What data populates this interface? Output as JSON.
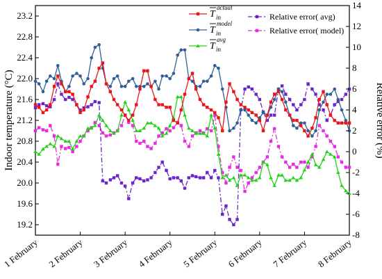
{
  "chart_data": {
    "type": "line",
    "ylabel_left": "Indoor temperature (°C)",
    "ylabel_right": "Relative error (%)",
    "ylim_left": [
      19.0,
      23.4
    ],
    "ylim_right": [
      -8,
      14
    ],
    "yticks_left": [
      "19.2",
      "19.6",
      "20.0",
      "20.4",
      "20.8",
      "21.2",
      "21.6",
      "22.0",
      "22.4",
      "22.8",
      "23.2"
    ],
    "yticks_right": [
      "-8",
      "-6",
      "-4",
      "-2",
      "0",
      "2",
      "4",
      "6",
      "8",
      "10",
      "12",
      "14"
    ],
    "xlim": [
      1,
      8
    ],
    "xticks": [
      {
        "x": 1,
        "label": "1 February"
      },
      {
        "x": 2,
        "label": "2 February"
      },
      {
        "x": 3,
        "label": "3 February"
      },
      {
        "x": 4,
        "label": "4 February"
      },
      {
        "x": 5,
        "label": "5 February"
      },
      {
        "x": 6,
        "label": "6 February"
      },
      {
        "x": 7,
        "label": "7 February"
      },
      {
        "x": 8,
        "label": "8 February"
      }
    ],
    "legend": [
      {
        "symbol": "T",
        "sub": "in",
        "sup": "actual",
        "color": "#e8161b",
        "marker": "square",
        "dash": false
      },
      {
        "symbol": "T",
        "sub": "in",
        "sup": "model",
        "color": "#2f5f96",
        "marker": "circle",
        "dash": false
      },
      {
        "symbol": "T",
        "sub": "in",
        "sup": "avg",
        "color": "#21d316",
        "marker": "triangle",
        "dash": false
      },
      {
        "label": "Relative error( avg)",
        "color": "#6a24c9",
        "marker": "square",
        "dash": true
      },
      {
        "label": "Relative error( model)",
        "color": "#e62ce0",
        "marker": "square",
        "dash": true
      }
    ],
    "series": [
      {
        "axis": "left",
        "color": "#e8161b",
        "marker": "square",
        "dash": false,
        "x": [
          1.0,
          1.08,
          1.17,
          1.25,
          1.33,
          1.42,
          1.5,
          1.58,
          1.67,
          1.75,
          1.83,
          1.92,
          2.0,
          2.08,
          2.17,
          2.25,
          2.33,
          2.42,
          2.5,
          2.58,
          2.67,
          2.75,
          2.83,
          2.92,
          3.0,
          3.08,
          3.17,
          3.25,
          3.33,
          3.42,
          3.5,
          3.58,
          3.67,
          3.75,
          3.83,
          3.92,
          4.0,
          4.08,
          4.17,
          4.25,
          4.33,
          4.42,
          4.5,
          4.58,
          4.67,
          4.75,
          4.83,
          4.92,
          5.0,
          5.08,
          5.17,
          5.25,
          5.33,
          5.42,
          5.5,
          5.58,
          5.67,
          5.75,
          5.83,
          5.92,
          6.0,
          6.08,
          6.17,
          6.25,
          6.33,
          6.42,
          6.5,
          6.58,
          6.67,
          6.75,
          6.83,
          6.92,
          7.0,
          7.08,
          7.17,
          7.25,
          7.33,
          7.42,
          7.5,
          7.58,
          7.67,
          7.75,
          7.83,
          7.92,
          8.0
        ],
        "y": [
          21.5,
          21.45,
          21.35,
          21.4,
          21.5,
          21.85,
          22.05,
          21.9,
          21.75,
          21.75,
          21.7,
          21.5,
          21.35,
          21.4,
          21.65,
          21.85,
          21.95,
          22.2,
          22.3,
          21.9,
          21.75,
          21.6,
          21.5,
          21.4,
          21.3,
          21.2,
          21.3,
          21.5,
          21.8,
          22.15,
          22.15,
          21.85,
          21.6,
          21.5,
          21.5,
          21.45,
          21.45,
          21.2,
          21.15,
          21.4,
          21.7,
          22.0,
          22.1,
          21.8,
          21.6,
          21.5,
          21.45,
          21.4,
          21.35,
          21.25,
          21.0,
          21.55,
          21.9,
          21.75,
          21.6,
          21.5,
          21.45,
          21.4,
          21.35,
          21.3,
          21.2,
          21.0,
          21.3,
          21.55,
          21.7,
          21.75,
          21.6,
          21.4,
          21.3,
          21.2,
          21.2,
          21.1,
          21.0,
          20.9,
          21.05,
          21.25,
          21.6,
          21.75,
          21.5,
          21.3,
          21.2,
          21.15,
          21.15,
          21.15,
          21.15
        ]
      },
      {
        "axis": "left",
        "color": "#2f5f96",
        "marker": "circle",
        "dash": false,
        "x": [
          1.0,
          1.08,
          1.17,
          1.25,
          1.33,
          1.42,
          1.5,
          1.58,
          1.67,
          1.75,
          1.83,
          1.92,
          2.0,
          2.08,
          2.17,
          2.25,
          2.33,
          2.42,
          2.5,
          2.58,
          2.67,
          2.75,
          2.83,
          2.92,
          3.0,
          3.08,
          3.17,
          3.25,
          3.33,
          3.42,
          3.5,
          3.58,
          3.67,
          3.75,
          3.83,
          3.92,
          4.0,
          4.08,
          4.17,
          4.25,
          4.33,
          4.42,
          4.5,
          4.58,
          4.67,
          4.75,
          4.83,
          4.92,
          5.0,
          5.08,
          5.17,
          5.25,
          5.33,
          5.42,
          5.5,
          5.58,
          5.67,
          5.75,
          5.83,
          5.92,
          6.0,
          6.08,
          6.17,
          6.25,
          6.33,
          6.42,
          6.5,
          6.58,
          6.67,
          6.75,
          6.83,
          6.92,
          7.0,
          7.08,
          7.17,
          7.25,
          7.33,
          7.42,
          7.5,
          7.58,
          7.67,
          7.75,
          7.83,
          7.92,
          8.0
        ],
        "y": [
          21.95,
          21.9,
          21.75,
          21.95,
          22.05,
          22.0,
          22.25,
          21.95,
          21.75,
          21.85,
          22.05,
          22.1,
          22.05,
          21.9,
          22.0,
          22.4,
          22.6,
          22.65,
          22.2,
          21.9,
          21.85,
          22.0,
          22.05,
          21.85,
          21.85,
          21.95,
          22.0,
          21.85,
          21.85,
          21.85,
          21.9,
          21.85,
          21.95,
          21.8,
          22.05,
          22.05,
          22.0,
          22.1,
          22.45,
          22.55,
          22.55,
          22.0,
          21.95,
          21.85,
          21.85,
          21.95,
          21.95,
          22.05,
          22.25,
          22.2,
          21.8,
          21.45,
          21.0,
          21.05,
          21.15,
          21.4,
          21.4,
          21.3,
          21.2,
          21.15,
          21.25,
          21.35,
          21.3,
          21.45,
          21.6,
          21.8,
          21.75,
          21.55,
          21.3,
          21.1,
          21.05,
          21.15,
          21.15,
          21.0,
          20.9,
          21.0,
          21.4,
          21.55,
          21.7,
          21.7,
          21.8,
          21.6,
          21.4,
          21.2,
          21.0
        ]
      },
      {
        "axis": "left",
        "color": "#21d316",
        "marker": "triangle",
        "dash": false,
        "x": [
          1.0,
          1.08,
          1.17,
          1.25,
          1.33,
          1.42,
          1.5,
          1.58,
          1.67,
          1.75,
          1.83,
          1.92,
          2.0,
          2.08,
          2.17,
          2.25,
          2.33,
          2.42,
          2.5,
          2.58,
          2.67,
          2.75,
          2.83,
          2.92,
          3.0,
          3.08,
          3.17,
          3.25,
          3.33,
          3.42,
          3.5,
          3.58,
          3.67,
          3.75,
          3.83,
          3.92,
          4.0,
          4.08,
          4.17,
          4.25,
          4.33,
          4.42,
          4.5,
          4.58,
          4.67,
          4.75,
          4.83,
          4.92,
          5.0,
          5.08,
          5.17,
          5.25,
          5.33,
          5.42,
          5.5,
          5.58,
          5.67,
          5.75,
          5.83,
          5.92,
          6.0,
          6.08,
          6.17,
          6.25,
          6.33,
          6.42,
          6.5,
          6.58,
          6.67,
          6.75,
          6.83,
          6.92,
          7.0,
          7.08,
          7.17,
          7.25,
          7.33,
          7.42,
          7.5,
          7.58,
          7.67,
          7.75,
          7.83,
          7.92,
          8.0
        ],
        "y": [
          20.6,
          20.55,
          20.65,
          20.7,
          20.75,
          20.7,
          20.9,
          20.85,
          20.8,
          20.8,
          20.65,
          20.8,
          20.9,
          20.9,
          21.05,
          21.05,
          21.1,
          21.3,
          21.2,
          21.1,
          21.0,
          20.95,
          21.0,
          21.3,
          21.55,
          21.4,
          21.2,
          21.0,
          21.0,
          21.05,
          21.15,
          21.15,
          21.1,
          21.05,
          20.9,
          20.95,
          21.1,
          21.25,
          21.65,
          21.65,
          21.3,
          21.05,
          21.0,
          20.95,
          20.95,
          20.95,
          20.9,
          21.3,
          21.05,
          20.55,
          20.1,
          20.15,
          20.05,
          20.1,
          19.95,
          20.15,
          20.15,
          20.1,
          20.05,
          20.05,
          20.1,
          20.4,
          20.35,
          20.1,
          19.95,
          20.15,
          20.15,
          20.05,
          20.05,
          20.1,
          20.05,
          20.1,
          20.25,
          20.4,
          20.55,
          20.35,
          20.3,
          20.45,
          20.6,
          20.55,
          20.5,
          20.2,
          19.95,
          19.85,
          19.8
        ]
      },
      {
        "axis": "right",
        "color": "#6a24c9",
        "marker": "square",
        "dash": true,
        "x": [
          1.0,
          1.08,
          1.17,
          1.25,
          1.33,
          1.42,
          1.5,
          1.58,
          1.67,
          1.75,
          1.83,
          1.92,
          2.0,
          2.08,
          2.17,
          2.25,
          2.33,
          2.42,
          2.5,
          2.58,
          2.67,
          2.75,
          2.83,
          2.92,
          3.0,
          3.08,
          3.17,
          3.25,
          3.33,
          3.42,
          3.5,
          3.58,
          3.67,
          3.75,
          3.83,
          3.92,
          4.0,
          4.08,
          4.17,
          4.25,
          4.33,
          4.42,
          4.5,
          4.58,
          4.67,
          4.75,
          4.83,
          4.92,
          5.0,
          5.08,
          5.17,
          5.25,
          5.33,
          5.42,
          5.5,
          5.58,
          5.67,
          5.75,
          5.83,
          5.92,
          6.0,
          6.08,
          6.17,
          6.25,
          6.33,
          6.42,
          6.5,
          6.58,
          6.67,
          6.75,
          6.83,
          6.92,
          7.0,
          7.08,
          7.17,
          7.25,
          7.33,
          7.42,
          7.5,
          7.58,
          7.67,
          7.75,
          7.83,
          7.92,
          8.0
        ],
        "y": [
          4.2,
          4.5,
          4.6,
          4.4,
          4.3,
          5.0,
          6.5,
          5.5,
          5.0,
          5.2,
          5.0,
          4.5,
          4.0,
          4.2,
          4.3,
          4.5,
          4.8,
          4.7,
          -2.8,
          -3.0,
          -2.7,
          -2.5,
          -2.3,
          -3.0,
          -3.3,
          -4.5,
          -3.0,
          -2.5,
          -2.6,
          -2.8,
          -2.7,
          -2.5,
          -2.0,
          -1.5,
          -1.0,
          -1.8,
          -2.6,
          -2.5,
          -2.5,
          -2.8,
          -3.5,
          -2.5,
          -2.3,
          -2.4,
          -2.5,
          -2.5,
          -2.0,
          -2.5,
          -1.8,
          -2.5,
          -6.0,
          -5.2,
          -6.5,
          -7.0,
          -6.5,
          4.0,
          6.0,
          6.2,
          6.0,
          5.5,
          5.0,
          3.8,
          3.0,
          3.5,
          3.5,
          6.0,
          6.3,
          5.5,
          5.0,
          4.5,
          4.0,
          4.5,
          5.0,
          6.5,
          6.0,
          5.5,
          4.5,
          4.0,
          3.0,
          3.5,
          4.5,
          4.8,
          5.0,
          5.5,
          6.0
        ]
      },
      {
        "axis": "right",
        "color": "#e62ce0",
        "marker": "square",
        "dash": true,
        "x": [
          1.0,
          1.08,
          1.17,
          1.25,
          1.33,
          1.42,
          1.5,
          1.58,
          1.67,
          1.75,
          1.83,
          1.92,
          2.0,
          2.08,
          2.17,
          2.25,
          2.33,
          2.42,
          2.5,
          2.58,
          2.67,
          2.75,
          2.83,
          2.92,
          3.0,
          3.08,
          3.17,
          3.25,
          3.33,
          3.42,
          3.5,
          3.58,
          3.67,
          3.75,
          3.83,
          3.92,
          4.0,
          4.08,
          4.17,
          4.25,
          4.33,
          4.42,
          4.5,
          4.58,
          4.67,
          4.75,
          4.83,
          4.92,
          5.0,
          5.08,
          5.17,
          5.25,
          5.33,
          5.42,
          5.5,
          5.58,
          5.67,
          5.75,
          5.83,
          5.92,
          6.0,
          6.08,
          6.17,
          6.25,
          6.33,
          6.42,
          6.5,
          6.58,
          6.67,
          6.75,
          6.83,
          6.92,
          7.0,
          7.08,
          7.17,
          7.25,
          7.33,
          7.42,
          7.5,
          7.58,
          7.67,
          7.75,
          7.83,
          7.92,
          8.0
        ],
        "y": [
          2.0,
          2.3,
          2.1,
          2.0,
          2.5,
          1.5,
          -1.2,
          0.5,
          0.3,
          0.4,
          0.0,
          0.5,
          1.0,
          1.5,
          2.0,
          2.3,
          2.8,
          2.5,
          1.8,
          1.5,
          1.6,
          1.8,
          2.0,
          2.5,
          3.5,
          2.8,
          2.5,
          1.0,
          0.8,
          1.0,
          0.5,
          0.3,
          0.8,
          1.5,
          1.8,
          2.2,
          2.0,
          2.3,
          2.8,
          2.5,
          1.0,
          0.5,
          1.5,
          1.8,
          2.0,
          1.8,
          2.2,
          2.0,
          3.5,
          0.5,
          -2.0,
          -3.0,
          -1.5,
          -0.5,
          -1.5,
          -1.8,
          -3.8,
          -3.0,
          -2.5,
          -2.0,
          -1.5,
          -1.0,
          -0.5,
          1.0,
          2.2,
          0.5,
          -0.5,
          -1.0,
          -1.5,
          -1.2,
          -1.5,
          -1.0,
          -1.0,
          -1.5,
          -0.5,
          0.5,
          2.5,
          2.0,
          1.5,
          1.0,
          0.5,
          -0.5,
          -1.0,
          -1.5,
          -1.5
        ]
      }
    ]
  }
}
